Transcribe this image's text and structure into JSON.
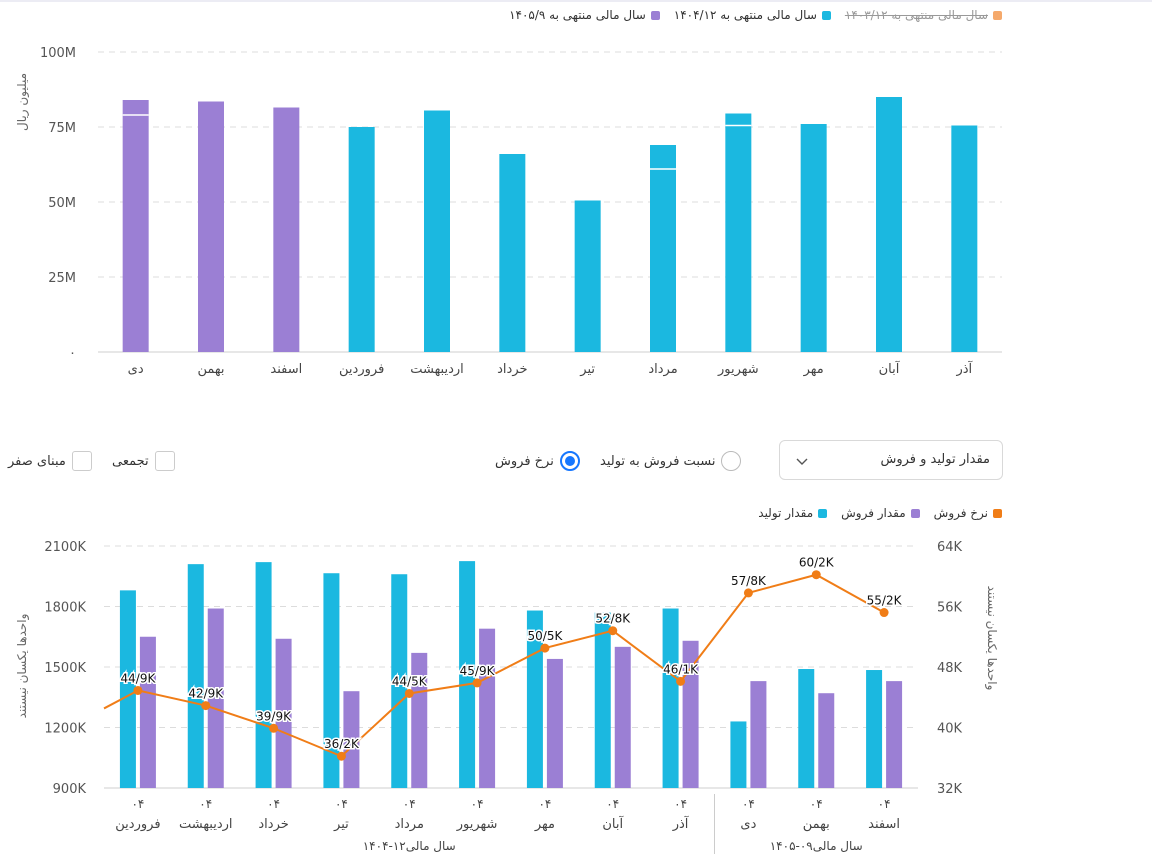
{
  "colors": {
    "purple": "#9b7fd4",
    "purple_light": "#c9b8ec",
    "cyan": "#1bb8e0",
    "cyan_light": "#7dd6ee",
    "orange": "#f07d17",
    "orange_legend": "#f5a96b",
    "grid": "#dcdcdc"
  },
  "top_chart": {
    "legend": [
      {
        "label": "سال مالی منتهی به ۱۴۰۵/۹",
        "color": "#9b7fd4",
        "disabled": false
      },
      {
        "label": "سال مالی منتهی به ۱۴۰۴/۱۲",
        "color": "#1bb8e0",
        "disabled": false
      },
      {
        "label": "سال مالی منتهی به ۱۴۰۳/۱۲",
        "color": "#f5a96b",
        "disabled": true
      }
    ],
    "ylabel": "میلیون ریال"
  },
  "controls": {
    "select_value": "مقدار تولید و فروش",
    "radio_ratio": "نسبت فروش به تولید",
    "radio_rate": "نرخ فروش",
    "check_cumulative": "تجمعی",
    "check_zero_base": "مبنای صفر"
  },
  "bottom_chart": {
    "legend": [
      {
        "label": "مقدار تولید",
        "color": "#1bb8e0"
      },
      {
        "label": "مقدار فروش",
        "color": "#9b7fd4"
      },
      {
        "label": "نرخ فروش",
        "color": "#f07d17"
      }
    ],
    "ylabel_left": "واحدها یکسان نیستند",
    "ylabel_right": "واحدها یکسان نیستند",
    "group_labels": [
      "سال مالی۱۲-۱۴۰۴",
      "سال مالی۰۹-۱۴۰۵"
    ]
  },
  "chart_data": [
    {
      "type": "bar",
      "categories": [
        "دی",
        "بهمن",
        "اسفند",
        "فروردین",
        "اردیبهشت",
        "خرداد",
        "تیر",
        "مرداد",
        "شهریور",
        "مهر",
        "آبان",
        "آذر"
      ],
      "y_ticks": [
        "۰",
        "25M",
        "50M",
        "75M",
        "100M"
      ],
      "ylim": [
        0,
        100
      ],
      "ylabel": "میلیون ریال",
      "series": [
        {
          "name": "سال مالی منتهی به ۱۴۰۵/۹",
          "values": [
            84,
            83.5,
            81.5,
            null,
            null,
            null,
            null,
            null,
            null,
            null,
            null,
            null
          ]
        },
        {
          "name": "سال مالی منتهی به ۱۴۰۴/۱۲",
          "values": [
            null,
            null,
            null,
            75,
            80.5,
            66,
            50.5,
            69,
            79.5,
            76,
            85,
            75.5
          ]
        },
        {
          "name": "سال مالی منتهی به ۱۴۰۳/۱۲",
          "values": [
            79,
            null,
            null,
            null,
            null,
            null,
            null,
            61,
            75.5,
            null,
            null,
            null
          ]
        }
      ],
      "grid": true,
      "legend_position": "top-right"
    },
    {
      "type": "bar",
      "categories": [
        "فروردین",
        "اردیبهشت",
        "خرداد",
        "تیر",
        "مرداد",
        "شهریور",
        "مهر",
        "آبان",
        "آذر",
        "دی",
        "بهمن",
        "اسفند"
      ],
      "year_label": "۰۴",
      "y_left_ticks": [
        "900K",
        "1200K",
        "1500K",
        "1800K",
        "2100K"
      ],
      "y_left_lim": [
        900,
        2100
      ],
      "y_right_ticks": [
        "32K",
        "40K",
        "48K",
        "56K",
        "64K"
      ],
      "y_right_lim": [
        32,
        64
      ],
      "series": [
        {
          "name": "مقدار تولید",
          "axis": "left",
          "values": [
            1880,
            2010,
            2020,
            1965,
            1960,
            2025,
            1780,
            1770,
            1790,
            1230,
            1490,
            1485
          ]
        },
        {
          "name": "مقدار فروش",
          "axis": "left",
          "values": [
            1650,
            1790,
            1640,
            1380,
            1570,
            1690,
            1540,
            1600,
            1630,
            1430,
            1370,
            1430
          ]
        },
        {
          "name": "نرخ فروش",
          "axis": "right",
          "type": "line",
          "values": [
            44.9,
            42.9,
            39.9,
            36.2,
            44.5,
            45.9,
            50.5,
            52.8,
            46.1,
            57.8,
            60.2,
            55.2
          ],
          "data_labels": [
            "44/9K",
            "42/9K",
            "39/9K",
            "36/2K",
            "44/5K",
            "45/9K",
            "50/5K",
            "52/8K",
            "46/1K",
            "57/8K",
            "60/2K",
            "55/2K"
          ]
        }
      ],
      "grid": true,
      "legend_position": "top-right"
    }
  ]
}
